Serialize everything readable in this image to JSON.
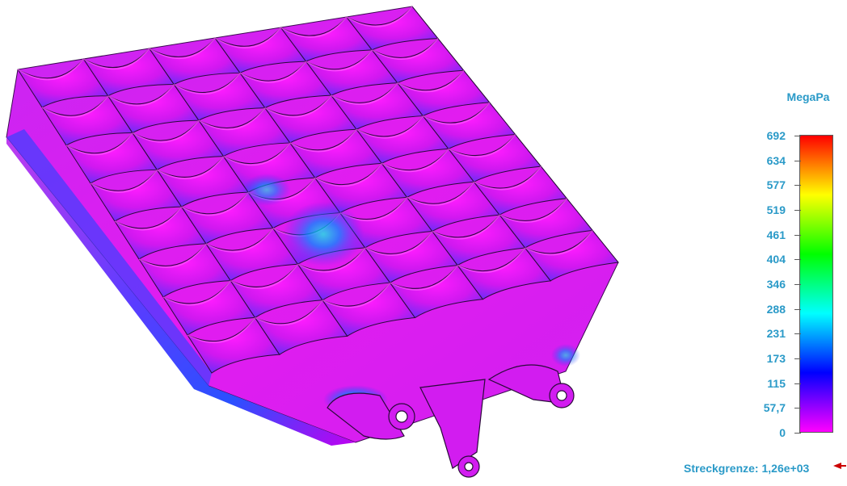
{
  "viewport": {
    "model": "stress-plot-grid-seat"
  },
  "legend": {
    "unit": "MegaPa",
    "ticks": [
      "692",
      "634",
      "577",
      "519",
      "461",
      "404",
      "346",
      "288",
      "231",
      "173",
      "115",
      "57,7",
      "0"
    ],
    "gradient_colors": [
      "#ff0000",
      "#ff8000",
      "#ffff00",
      "#80ff00",
      "#00ff00",
      "#00ff80",
      "#00ffff",
      "#0080ff",
      "#0000ff",
      "#8000ff",
      "#ff00ff"
    ]
  },
  "yield": {
    "label": "Streckgrenze: 1,26e+03",
    "arrow_icon": "red-arrow-left-icon",
    "arrow_color": "#cc0000"
  },
  "colors": {
    "label_text": "#2a9ac8",
    "stress_low": "#e000f0",
    "stress_mid": "#4a30ff",
    "stress_high": "#00ffff"
  }
}
